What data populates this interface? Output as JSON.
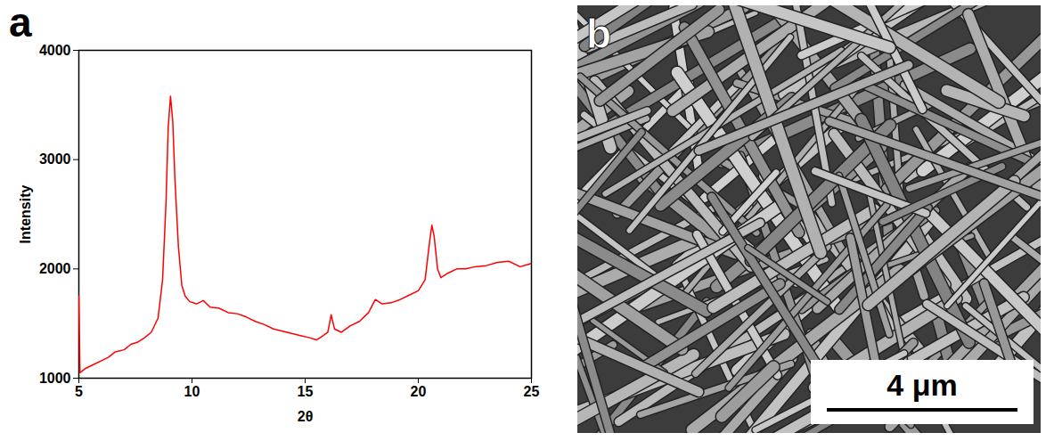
{
  "chart_data": {
    "type": "line",
    "title": "a",
    "x": [
      5.0,
      5.05,
      5.3,
      5.6,
      6.0,
      6.3,
      6.6,
      7.0,
      7.3,
      7.6,
      7.9,
      8.2,
      8.5,
      8.7,
      8.85,
      8.95,
      9.05,
      9.15,
      9.25,
      9.4,
      9.55,
      9.7,
      9.9,
      10.2,
      10.5,
      10.8,
      11.2,
      11.6,
      12.0,
      12.4,
      12.8,
      13.2,
      13.6,
      14.0,
      14.4,
      14.8,
      15.2,
      15.5,
      15.8,
      16.0,
      16.15,
      16.3,
      16.6,
      17.0,
      17.4,
      17.8,
      18.1,
      18.4,
      18.8,
      19.2,
      19.6,
      20.0,
      20.3,
      20.5,
      20.6,
      20.7,
      20.85,
      21.0,
      21.3,
      21.7,
      22.1,
      22.5,
      23.0,
      23.5,
      24.0,
      24.5,
      25.0
    ],
    "values": [
      1750,
      1050,
      1090,
      1120,
      1160,
      1190,
      1240,
      1260,
      1310,
      1330,
      1370,
      1420,
      1550,
      1900,
      2600,
      3300,
      3580,
      3350,
      2800,
      2200,
      1850,
      1750,
      1700,
      1680,
      1710,
      1650,
      1640,
      1600,
      1590,
      1560,
      1520,
      1490,
      1450,
      1430,
      1410,
      1390,
      1370,
      1350,
      1390,
      1420,
      1580,
      1450,
      1420,
      1480,
      1520,
      1600,
      1720,
      1680,
      1690,
      1720,
      1760,
      1800,
      1900,
      2250,
      2400,
      2300,
      2000,
      1920,
      1960,
      2000,
      2000,
      2020,
      2030,
      2060,
      2070,
      2020,
      2050
    ],
    "color": "#ff0000",
    "xlim": [
      5,
      25
    ],
    "ylim": [
      1000,
      4000
    ],
    "xticks": [
      5,
      10,
      15,
      20,
      25
    ],
    "yticks": [
      1000,
      2000,
      3000,
      4000
    ],
    "x_label": "2θ",
    "y_label": "Intensity",
    "grid": false
  },
  "image": {
    "label": "b",
    "scale_bar": "4 μm"
  }
}
